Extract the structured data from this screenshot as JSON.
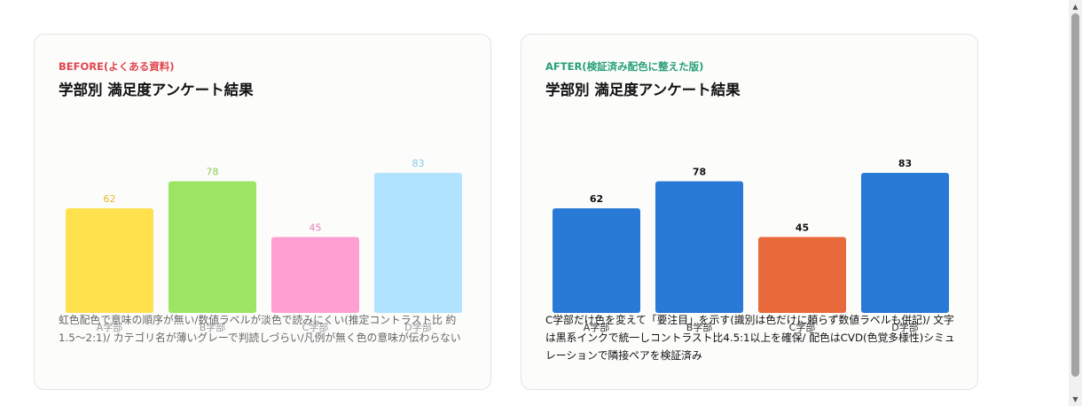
{
  "before": {
    "kicker": "BEFORE(よくある資料)",
    "title": "学部別 満足度アンケート結果",
    "note": "虹色配色で意味の順序が無い/数値ラベルが淡色で読みにくい(推定コントラスト比 約1.5〜2:1)/ カテゴリ名が薄いグレーで判読しづらい/凡例が無く色の意味が伝わらない"
  },
  "after": {
    "kicker": "AFTER(検証済み配色に整えた版)",
    "title": "学部別 満足度アンケート結果",
    "note": "C学部だけ色を変えて「要注目」を示す(識別は色だけに頼らず数値ラベルも併記)/ 文字は黒系インクで統一しコントラスト比4.5:1以上を確保/ 配色はCVD(色覚多様性)シミュレーションで隣接ペアを検証済み"
  },
  "chart_data": [
    {
      "type": "bar",
      "title": "学部別 満足度アンケート結果",
      "categories": [
        "A学部",
        "B学部",
        "C学部",
        "D学部"
      ],
      "values": [
        62,
        78,
        45,
        83
      ],
      "ylim": [
        0,
        83
      ],
      "grid": false,
      "bar_colors": [
        "#ffe04d",
        "#9be563",
        "#ffa0d2",
        "#b0e3fd"
      ],
      "value_label_colors": [
        "#e8b92c",
        "#8dcd4c",
        "#ea7bb8",
        "#80c9ec"
      ],
      "category_label_color": "#999999"
    },
    {
      "type": "bar",
      "title": "学部別 満足度アンケート結果",
      "categories": [
        "A学部",
        "B学部",
        "C学部",
        "D学部"
      ],
      "values": [
        62,
        78,
        45,
        83
      ],
      "ylim": [
        0,
        83
      ],
      "grid": false,
      "bar_colors": [
        "#2979d6",
        "#2979d6",
        "#e8693a",
        "#2979d6"
      ],
      "value_label_colors": [
        "#111111",
        "#111111",
        "#111111",
        "#111111"
      ],
      "category_label_color": "#333333"
    }
  ],
  "scrollbar": {
    "up_icon": "▲",
    "down_icon": "▼"
  }
}
